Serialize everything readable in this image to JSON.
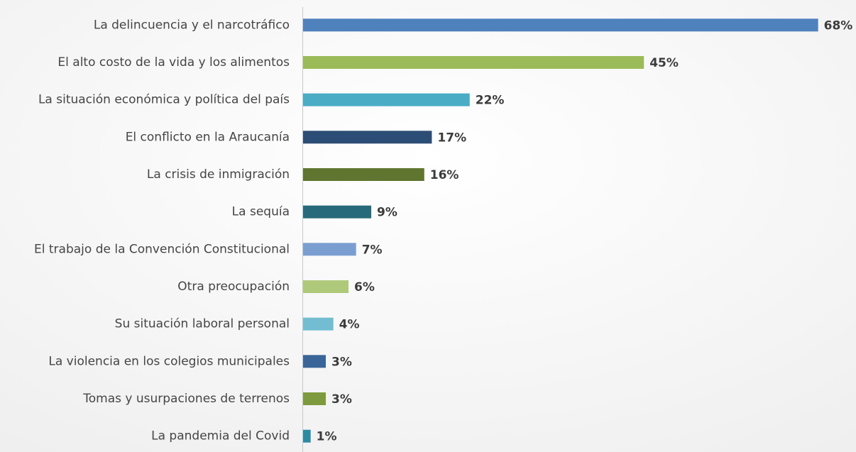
{
  "chart_data": {
    "type": "barh",
    "categories": [
      "La delincuencia y el narcotráfico",
      "El alto costo de la vida y los alimentos",
      "La situación económica y política del país",
      "El conflicto en la Araucanía",
      "La crisis de inmigración",
      "La sequía",
      "El trabajo de la Convención Constitucional",
      "Otra preocupación",
      "Su situación laboral personal",
      "La violencia en los colegios municipales",
      "Tomas y usurpaciones de terrenos",
      "La pandemia del Covid"
    ],
    "values": [
      68,
      45,
      22,
      17,
      16,
      9,
      7,
      6,
      4,
      3,
      3,
      1
    ],
    "value_labels": [
      "68%",
      "45%",
      "22%",
      "17%",
      "16%",
      "9%",
      "7%",
      "6%",
      "4%",
      "3%",
      "3%",
      "1%"
    ],
    "colors": [
      "#4f81bd",
      "#9bbb59",
      "#4bacc6",
      "#2c4d75",
      "#5f7530",
      "#276a7c",
      "#7b9ed1",
      "#afc97a",
      "#72bdd1",
      "#3a6599",
      "#7d9a3e",
      "#2e8aa3"
    ],
    "xlim": [
      0,
      73
    ]
  }
}
